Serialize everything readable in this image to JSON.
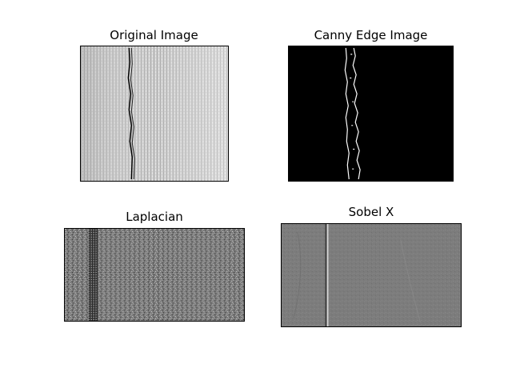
{
  "figure": {
    "panels": [
      {
        "title": "Original Image"
      },
      {
        "title": "Canny Edge Image"
      },
      {
        "title": "Laplacian"
      },
      {
        "title": "Sobel X"
      }
    ],
    "colors": {
      "background": "#ffffff",
      "canny_background": "#000000",
      "edge_white": "#ffffff",
      "original_base": "#c9c9c9",
      "laplacian_base": "#7a7a7a",
      "sobel_base": "#7c7c7c"
    }
  }
}
